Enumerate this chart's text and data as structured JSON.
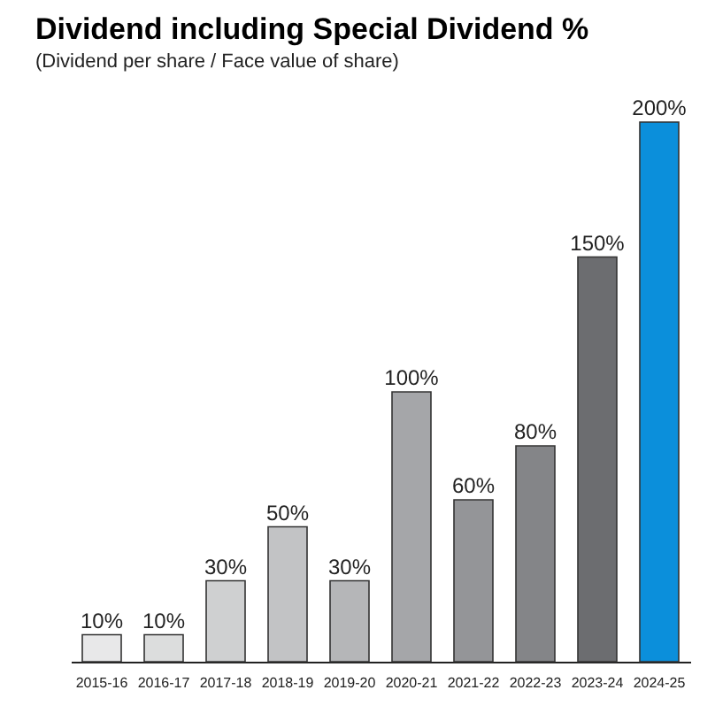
{
  "chart_data": {
    "type": "bar",
    "title": "Dividend including Special Dividend %",
    "subtitle": "(Dividend per share / Face value of share)",
    "categories": [
      "2015-16",
      "2016-17",
      "2017-18",
      "2018-19",
      "2019-20",
      "2020-21",
      "2021-22",
      "2022-23",
      "2023-24",
      "2024-25"
    ],
    "values": [
      10,
      10,
      30,
      50,
      30,
      100,
      60,
      80,
      150,
      200
    ],
    "value_labels": [
      "10%",
      "10%",
      "30%",
      "50%",
      "30%",
      "100%",
      "60%",
      "80%",
      "150%",
      "200%"
    ],
    "colors": [
      "#e8e8e9",
      "#dcdddd",
      "#cfd0d1",
      "#c2c3c5",
      "#b5b6b8",
      "#a5a6a9",
      "#949598",
      "#848588",
      "#6c6d70",
      "#0b8fdb"
    ]
  }
}
